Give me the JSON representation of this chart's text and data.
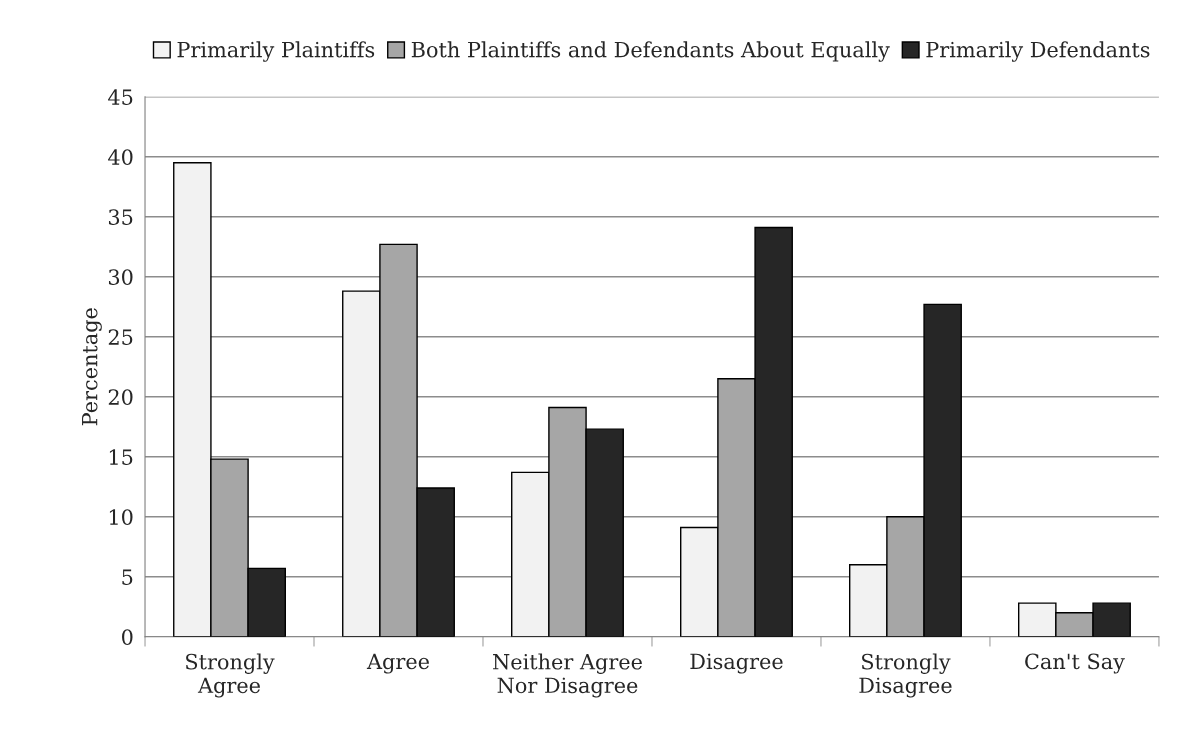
{
  "chart_data": {
    "type": "bar",
    "ylabel": "Percentage",
    "categories": [
      "Strongly\nAgree",
      "Agree",
      "Neither Agree\nNor Disagree",
      "Disagree",
      "Strongly\nDisagree",
      "Can't Say"
    ],
    "series": [
      {
        "name": "Primarily Plaintiffs",
        "color": "#f2f2f2",
        "values": [
          39.5,
          28.8,
          13.7,
          9.1,
          6.0,
          2.8
        ]
      },
      {
        "name": "Both Plaintiffs and Defendants About Equally",
        "color": "#a6a6a6",
        "values": [
          14.8,
          32.7,
          19.1,
          21.5,
          10.0,
          2.0
        ]
      },
      {
        "name": "Primarily Defendants",
        "color": "#262626",
        "values": [
          5.7,
          12.4,
          17.3,
          34.1,
          27.7,
          2.8
        ]
      }
    ],
    "ylim": [
      0,
      45
    ],
    "yticks": [
      0,
      5,
      10,
      15,
      20,
      25,
      30,
      35,
      40,
      45
    ],
    "grid": "y",
    "legend": "top"
  }
}
